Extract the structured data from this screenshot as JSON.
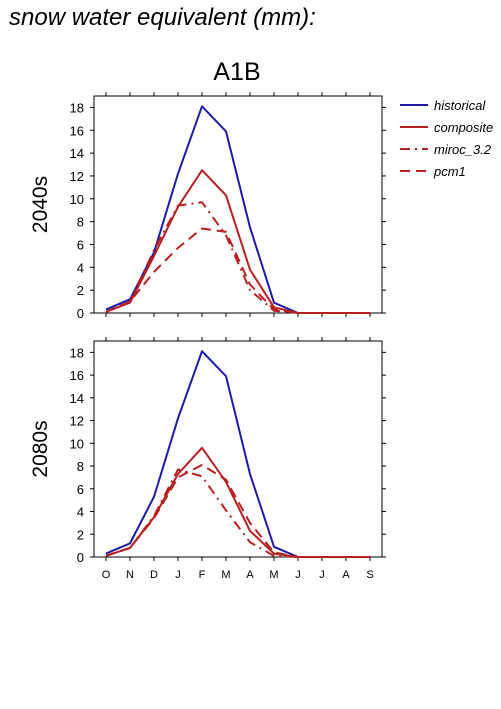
{
  "title": "snow water equivalent (mm):",
  "chart_data": {
    "type": "line",
    "scenario": "A1B",
    "categories": [
      "O",
      "N",
      "D",
      "J",
      "F",
      "M",
      "A",
      "M",
      "J",
      "J",
      "A",
      "S"
    ],
    "ylim": [
      0,
      19
    ],
    "yticks": [
      0,
      2,
      4,
      6,
      8,
      10,
      12,
      14,
      16,
      18
    ],
    "legend_position": "top-right",
    "colors": {
      "historical": "#1c1ca8",
      "composite": "#b81f1f",
      "miroc_3.2": "#b81f1f",
      "pcm1": "#b81f1f"
    },
    "legend": [
      {
        "name": "historical",
        "style": "solid",
        "color": "#1c1ca8"
      },
      {
        "name": "composite",
        "style": "solid",
        "color": "#b81f1f"
      },
      {
        "name": "miroc_3.2",
        "style": "dashdot",
        "color": "#b81f1f"
      },
      {
        "name": "pcm1",
        "style": "dashed",
        "color": "#b81f1f"
      }
    ],
    "panels": [
      {
        "label": "2040s",
        "series": [
          {
            "name": "historical",
            "style": "solid",
            "values": [
              0.3,
              1.2,
              5.3,
              12.2,
              18.1,
              15.9,
              7.5,
              0.9,
              0.0,
              0.0,
              0.0,
              0.0
            ]
          },
          {
            "name": "composite",
            "style": "solid",
            "values": [
              0.1,
              0.9,
              5.0,
              9.3,
              12.5,
              10.3,
              3.8,
              0.5,
              0.0,
              0.0,
              0.0,
              0.0
            ]
          },
          {
            "name": "miroc_3.2",
            "style": "dashdot",
            "values": [
              0.1,
              1.0,
              5.5,
              9.4,
              9.7,
              6.8,
              2.0,
              0.2,
              0.0,
              0.0,
              0.0,
              0.0
            ]
          },
          {
            "name": "pcm1",
            "style": "dashed",
            "values": [
              0.1,
              1.0,
              3.6,
              5.7,
              7.4,
              7.1,
              2.5,
              0.3,
              0.0,
              0.0,
              0.0,
              0.0
            ]
          }
        ]
      },
      {
        "label": "2080s",
        "series": [
          {
            "name": "historical",
            "style": "solid",
            "values": [
              0.3,
              1.2,
              5.3,
              12.2,
              18.1,
              15.9,
              7.3,
              0.9,
              0.0,
              0.0,
              0.0,
              0.0
            ]
          },
          {
            "name": "composite",
            "style": "solid",
            "values": [
              0.1,
              0.8,
              3.5,
              7.3,
              9.6,
              6.6,
              2.3,
              0.3,
              0.0,
              0.0,
              0.0,
              0.0
            ]
          },
          {
            "name": "miroc_3.2",
            "style": "dashdot",
            "values": [
              0.1,
              0.8,
              3.6,
              7.7,
              7.1,
              4.1,
              1.3,
              0.1,
              0.0,
              0.0,
              0.0,
              0.0
            ]
          },
          {
            "name": "pcm1",
            "style": "dashed",
            "values": [
              0.1,
              0.8,
              3.4,
              7.0,
              8.1,
              6.8,
              3.0,
              0.4,
              0.0,
              0.0,
              0.0,
              0.0
            ]
          }
        ]
      }
    ]
  }
}
